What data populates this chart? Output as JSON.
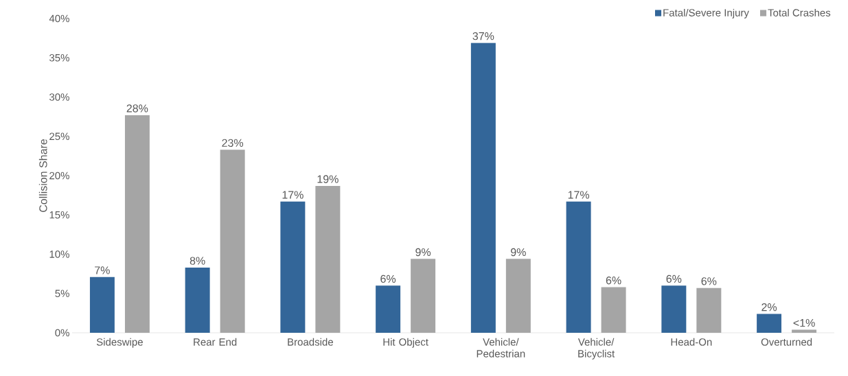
{
  "chart_data": {
    "type": "bar",
    "ylabel": "Collision Share",
    "categories": [
      "Sideswipe",
      "Rear End",
      "Broadside",
      "Hit Object",
      "Vehicle/ Pedestrian",
      "Vehicle/ Bicyclist",
      "Head-On",
      "Overturned"
    ],
    "series": [
      {
        "name": "Fatal/Severe Injury",
        "color": "#336699",
        "values": [
          7.1,
          8.3,
          16.7,
          6.0,
          36.9,
          16.7,
          6.0,
          2.4
        ],
        "value_labels": [
          "7%",
          "8%",
          "17%",
          "6%",
          "37%",
          "17%",
          "6%",
          "2%"
        ]
      },
      {
        "name": "Total Crashes",
        "color": "#a5a5a5",
        "values": [
          27.7,
          23.3,
          18.7,
          9.4,
          9.4,
          5.8,
          5.7,
          0.4
        ],
        "value_labels": [
          "28%",
          "23%",
          "19%",
          "9%",
          "9%",
          "6%",
          "6%",
          "<1%"
        ]
      }
    ],
    "ylim": [
      0,
      40
    ],
    "yticks": [
      {
        "value": 0,
        "label": "0%"
      },
      {
        "value": 5,
        "label": "5%"
      },
      {
        "value": 10,
        "label": "10%"
      },
      {
        "value": 15,
        "label": "15%"
      },
      {
        "value": 20,
        "label": "20%"
      },
      {
        "value": 25,
        "label": "25%"
      },
      {
        "value": 30,
        "label": "30%"
      },
      {
        "value": 35,
        "label": "35%"
      },
      {
        "value": 40,
        "label": "40%"
      }
    ],
    "legend": "top right"
  }
}
